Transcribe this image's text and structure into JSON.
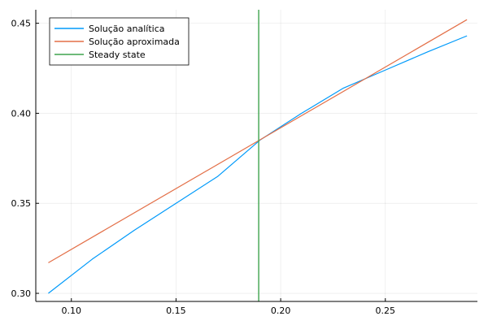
{
  "chart_data": {
    "type": "line",
    "xlim": [
      0.083,
      0.294
    ],
    "ylim": [
      0.2955,
      0.4575
    ],
    "xticks": [
      {
        "value": 0.1,
        "label": "0.10"
      },
      {
        "value": 0.15,
        "label": "0.15"
      },
      {
        "value": 0.2,
        "label": "0.20"
      },
      {
        "value": 0.25,
        "label": "0.25"
      }
    ],
    "yticks": [
      {
        "value": 0.3,
        "label": "0.30"
      },
      {
        "value": 0.35,
        "label": "0.35"
      },
      {
        "value": 0.4,
        "label": "0.40"
      },
      {
        "value": 0.45,
        "label": "0.45"
      }
    ],
    "grid": true,
    "legend_position": "top-left",
    "series": [
      {
        "name": "Solução analítica",
        "color": "#009AFA",
        "x": [
          0.089,
          0.11,
          0.13,
          0.15,
          0.17,
          0.19,
          0.21,
          0.23,
          0.25,
          0.27,
          0.289
        ],
        "y": [
          0.3,
          0.319,
          0.335,
          0.35,
          0.365,
          0.385,
          0.4,
          0.414,
          0.424,
          0.434,
          0.443
        ]
      },
      {
        "name": "Solução aproximada",
        "color": "#E36F47",
        "x": [
          0.089,
          0.289
        ],
        "y": [
          0.317,
          0.452
        ]
      },
      {
        "name": "Steady state",
        "color": "#3EA44E",
        "orientation": "vertical",
        "x_value": 0.1895
      }
    ]
  }
}
